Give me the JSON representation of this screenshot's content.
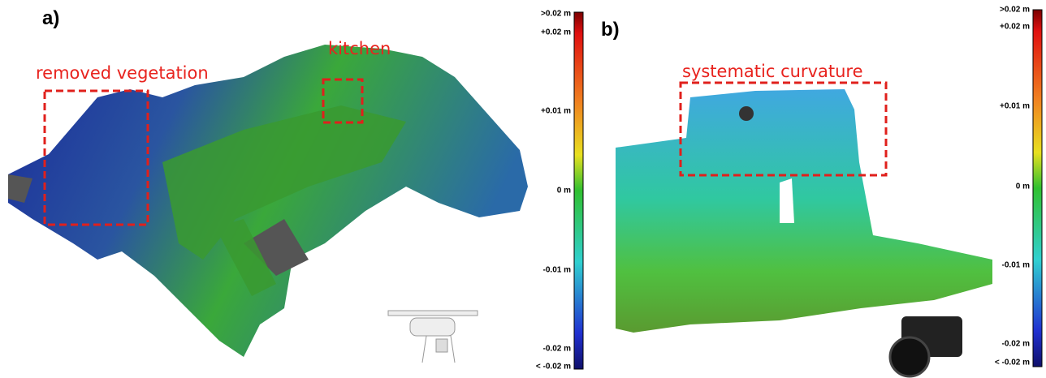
{
  "panels": [
    {
      "label": "a)",
      "annotations": [
        "removed vegetation",
        "kitchen"
      ],
      "colorbar": [
        ">0.02 m",
        "+0.02 m",
        "+0.01 m",
        "0 m",
        "-0.01 m",
        "-0.02 m",
        "< -0.02 m"
      ]
    },
    {
      "label": "b)",
      "annotations": [
        "systematic curvature"
      ],
      "colorbar": [
        ">0.02 m",
        "+0.02 m",
        "+0.01 m",
        "0 m",
        "-0.01 m",
        "-0.02 m",
        "< -0.02 m"
      ]
    }
  ]
}
